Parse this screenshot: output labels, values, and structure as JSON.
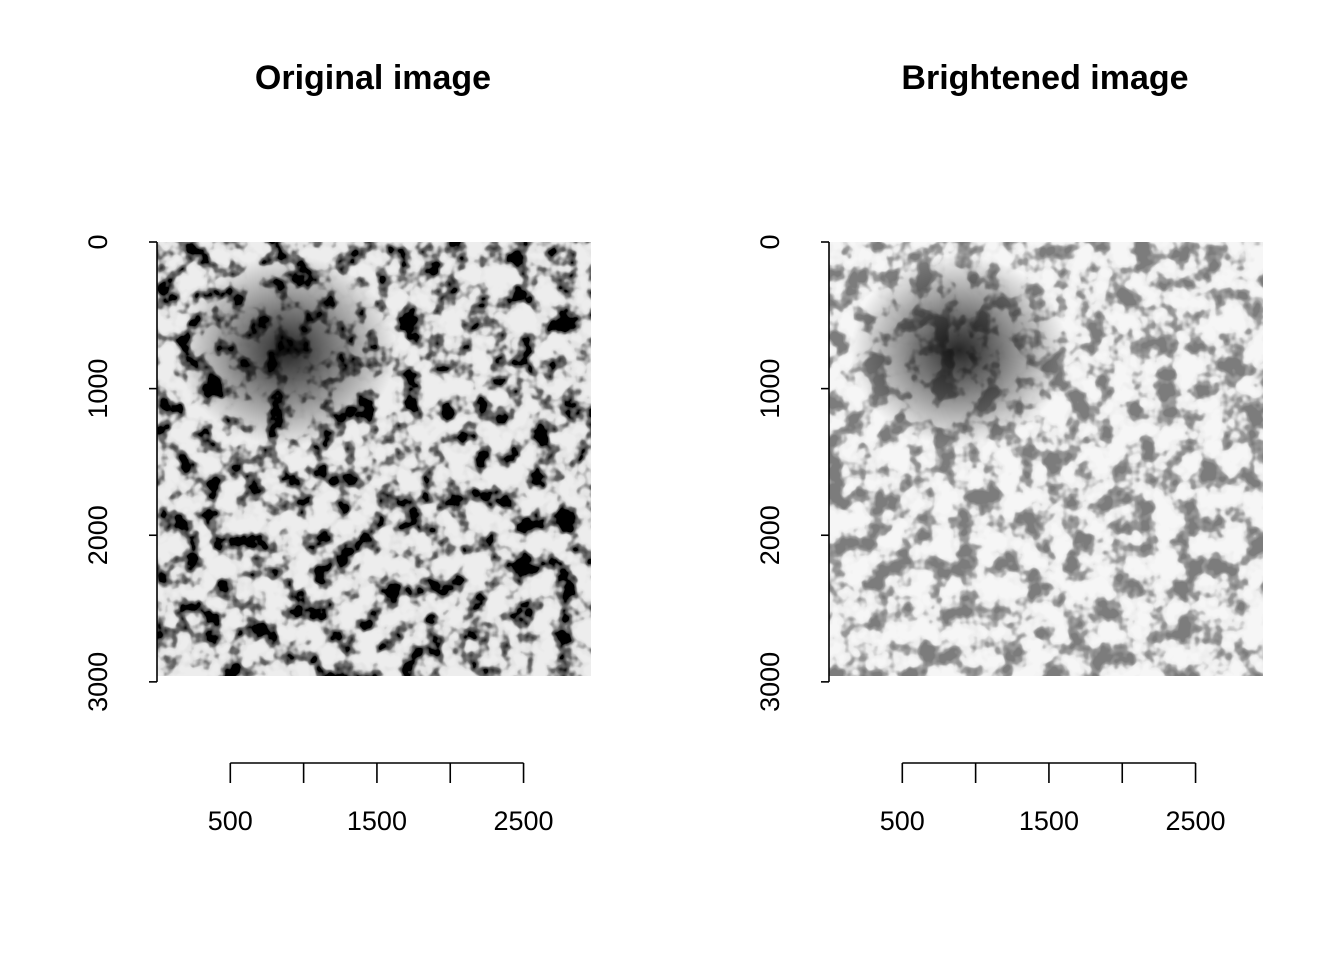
{
  "chart_data": [
    {
      "type": "image",
      "title": "Original image",
      "xlim": [
        0,
        2960
      ],
      "ylim": [
        2960,
        0
      ],
      "xticks": [
        500,
        {
          "value": 1000,
          "label": null
        },
        1500,
        {
          "value": 2000,
          "label": null
        },
        2500
      ],
      "yticks": [
        0,
        1000,
        2000,
        3000
      ]
    },
    {
      "type": "image",
      "title": "Brightened image",
      "xlim": [
        0,
        2960
      ],
      "ylim": [
        2960,
        0
      ],
      "xticks": [
        500,
        {
          "value": 1000,
          "label": null
        },
        1500,
        {
          "value": 2000,
          "label": null
        },
        2500
      ],
      "yticks": [
        0,
        1000,
        2000,
        3000
      ]
    }
  ]
}
